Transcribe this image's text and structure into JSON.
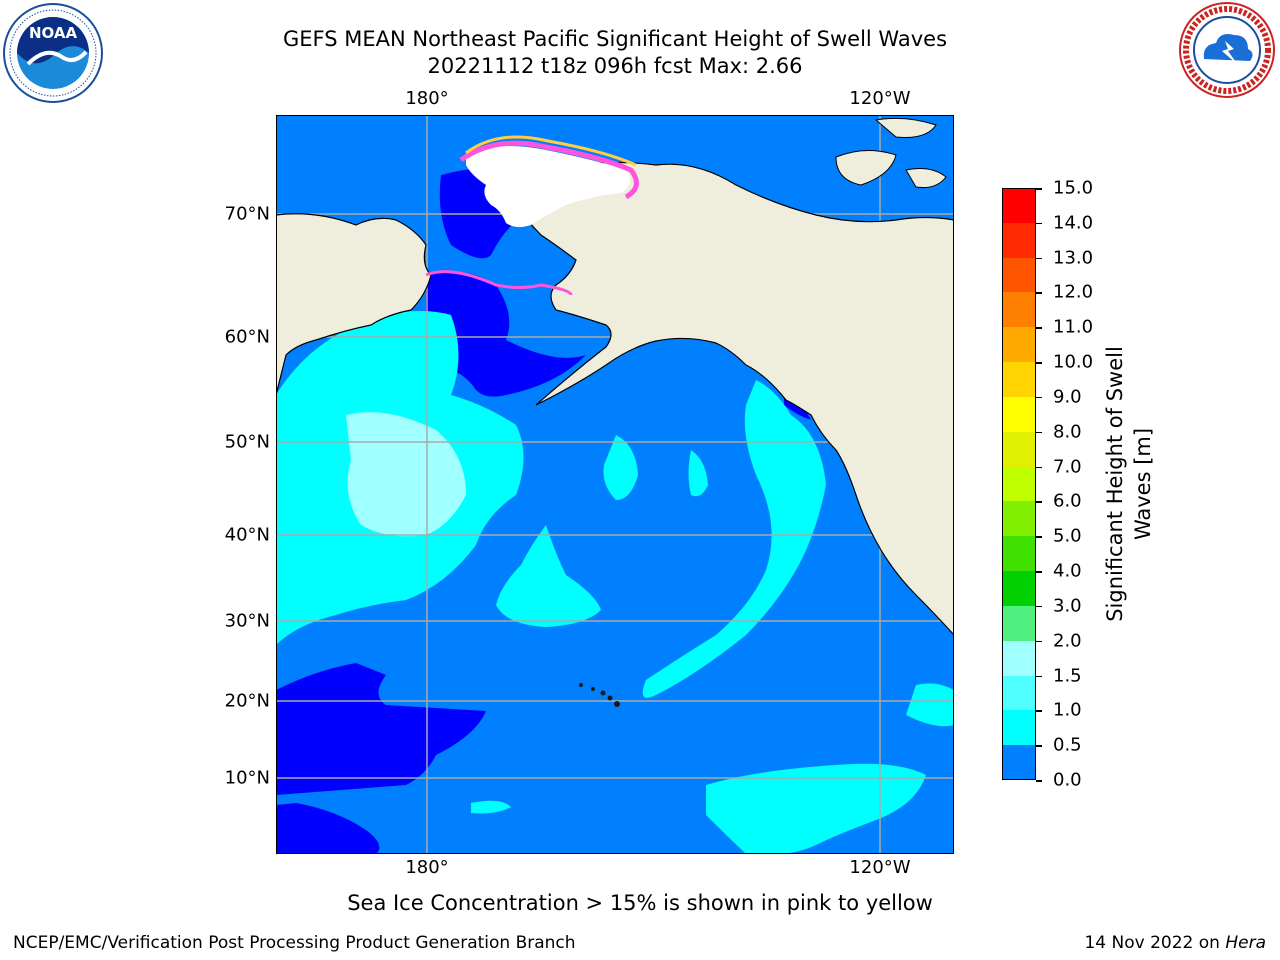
{
  "header": {
    "title_line1": "GEFS MEAN Northeast Pacific Significant Height of Swell Waves",
    "title_line2": "20221112 t18z 096h fcst   Max: 2.66"
  },
  "axes": {
    "lon_labels": [
      "180°",
      "120°W"
    ],
    "lat_labels": [
      "70°N",
      "60°N",
      "50°N",
      "40°N",
      "30°N",
      "20°N",
      "10°N"
    ]
  },
  "colorbar": {
    "title_line1": "Significant Height of Swell",
    "title_line2": "Waves [m]",
    "ticks": [
      "15.0",
      "14.0",
      "13.0",
      "12.0",
      "11.0",
      "10.0",
      "9.0",
      "8.0",
      "7.0",
      "6.0",
      "5.0",
      "4.0",
      "3.0",
      "2.0",
      "1.5",
      "1.0",
      "0.5",
      "0.0"
    ],
    "colors": [
      "#ff0000",
      "#ff2a00",
      "#ff5500",
      "#ff8000",
      "#ffaa00",
      "#ffd400",
      "#ffff00",
      "#e0f000",
      "#c0ff00",
      "#80f000",
      "#40e000",
      "#00d000",
      "#50f080",
      "#a0ffff",
      "#50ffff",
      "#00ffff",
      "#0080ff",
      "#0000ff"
    ]
  },
  "note": "Sea Ice Concentration > 15% is shown in pink to yellow",
  "footer": {
    "left": "NCEP/EMC/Verification Post Processing Product Generation Branch",
    "right_prefix": "14 Nov 2022 on ",
    "right_host": "Hera"
  },
  "logos": {
    "noaa_text": "NOAA",
    "nws_ring": "NATIONAL WEATHER SERVICE"
  },
  "map_colors": {
    "land": "#efeedd",
    "ocean_base": "#0080ff",
    "low": "#0000ff",
    "mid": "#00ffff",
    "high": "#a0ffff",
    "ice_pink": "#ff55dd",
    "ice_yellow": "#ffcc44"
  }
}
